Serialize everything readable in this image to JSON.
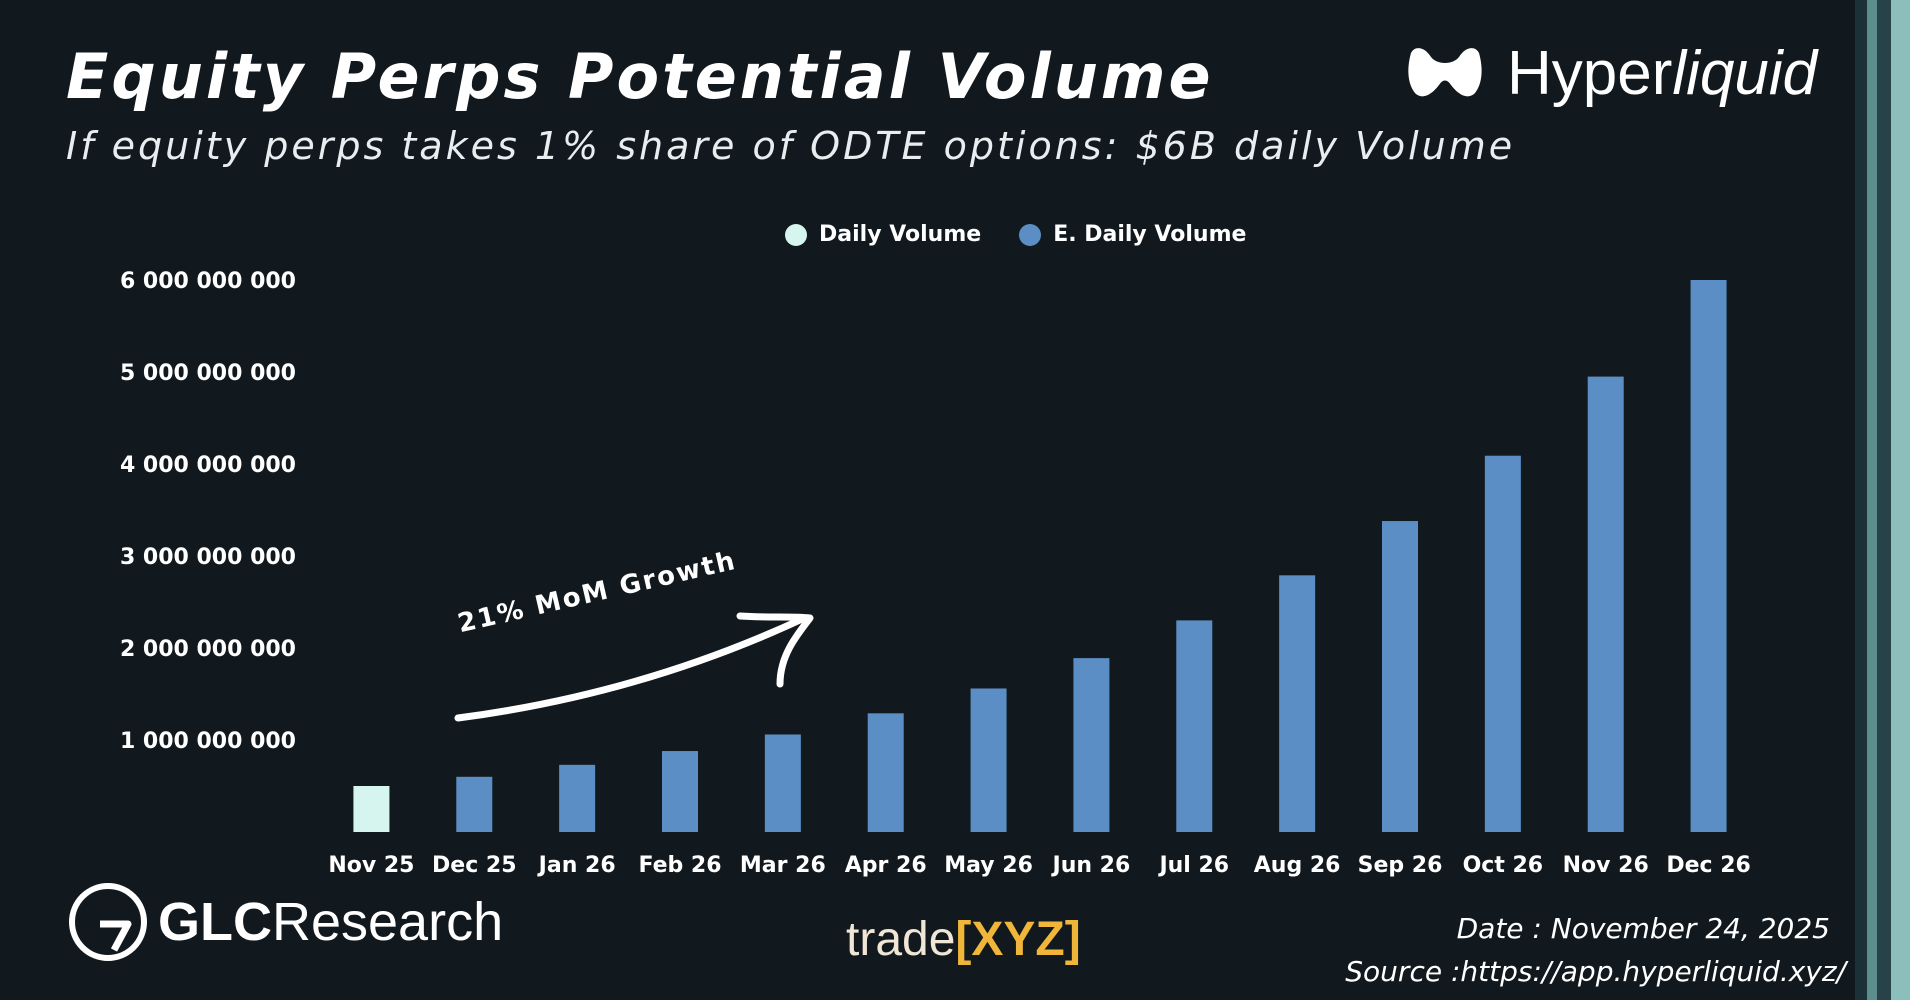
{
  "header": {
    "title": "Equity Perps Potential Volume",
    "subtitle": "If equity perps takes 1% share of ODTE options: $6B daily Volume"
  },
  "brand": {
    "name_regular": "Hyper",
    "name_italic": "liquid"
  },
  "annotation": {
    "text": "21% MoM Growth"
  },
  "footer": {
    "glc_bold": "GLC",
    "glc_regular": "Research",
    "trade_word": "trade",
    "trade_xyz": "[XYZ]",
    "date": "Date : November 24, 2025",
    "source": "Source :https://app.hyperliquid.xyz/"
  },
  "colors": {
    "background": "#12191e",
    "daily_volume": "#d5f5ee",
    "estimated_volume": "#5b8ec4",
    "accent_gold": "#f0b63a"
  },
  "chart_data": {
    "type": "bar",
    "title": "Equity Perps Potential Volume",
    "subtitle": "If equity perps takes 1% share of ODTE options: $6B daily Volume",
    "xlabel": "",
    "ylabel": "",
    "ylim": [
      0,
      6000000000
    ],
    "yticks": [
      1000000000,
      2000000000,
      3000000000,
      4000000000,
      5000000000,
      6000000000
    ],
    "ytick_labels": [
      "1 000 000 000",
      "2 000 000 000",
      "3 000 000 000",
      "4 000 000 000",
      "5 000 000 000",
      "6 000 000 000"
    ],
    "grid": false,
    "legend_position": "top-center",
    "categories": [
      "Nov 25",
      "Dec 25",
      "Jan 26",
      "Feb 26",
      "Mar 26",
      "Apr 26",
      "May 26",
      "Jun 26",
      "Jul 26",
      "Aug 26",
      "Sep 26",
      "Oct 26",
      "Nov 26",
      "Dec 26"
    ],
    "series": [
      {
        "name": "Daily Volume",
        "color": "#d5f5ee",
        "values": [
          500000000,
          null,
          null,
          null,
          null,
          null,
          null,
          null,
          null,
          null,
          null,
          null,
          null,
          null
        ]
      },
      {
        "name": "E. Daily Volume",
        "color": "#5b8ec4",
        "values": [
          null,
          600000000,
          730000000,
          880000000,
          1060000000,
          1290000000,
          1560000000,
          1890000000,
          2300000000,
          2790000000,
          3380000000,
          4090000000,
          4950000000,
          6000000000
        ]
      }
    ]
  }
}
